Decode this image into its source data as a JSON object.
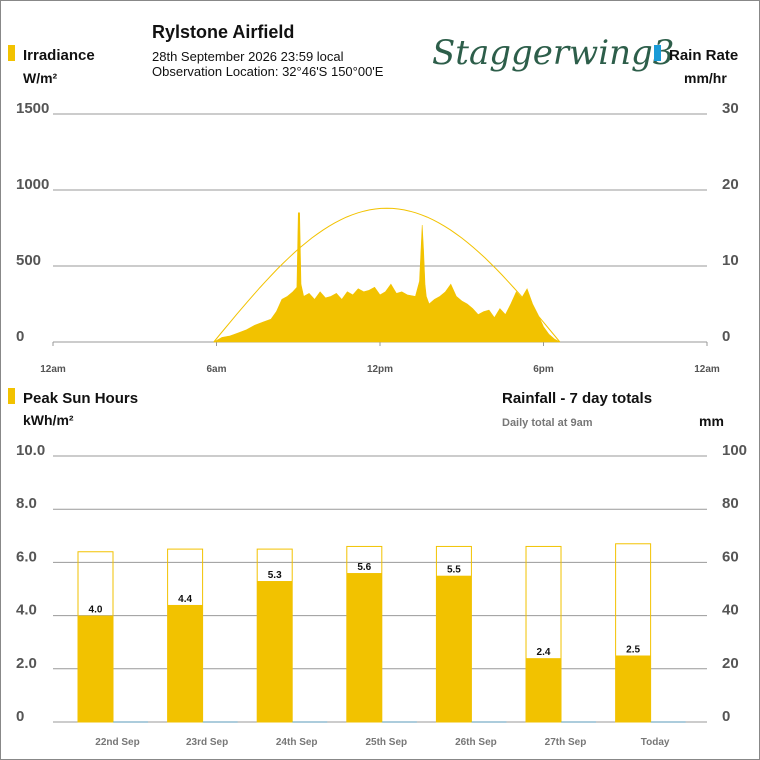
{
  "header": {
    "station_name": "Rylstone Airfield",
    "datetime": "28th September 2026  23:59 local",
    "location": "Observation Location:  32°46'S 150°00'E",
    "logo_text": "Staggerwing3"
  },
  "colors": {
    "irradiance": "#F2C200",
    "rain": "#1A9BD7",
    "grid": "#999999",
    "clear_sky_curve": "#F2C200",
    "axis_text": "#555555"
  },
  "chart_data": [
    {
      "type": "area",
      "legend_left": "Irradiance",
      "unit_left": "W/m²",
      "legend_right": "Rain Rate",
      "unit_right": "mm/hr",
      "ylim_left": [
        0,
        1500
      ],
      "ylim_right": [
        0,
        30
      ],
      "yticks_left": [
        "0",
        "500",
        "1000",
        "1500"
      ],
      "yticks_right": [
        "0",
        "10",
        "20",
        "30"
      ],
      "xlim_hours": [
        0,
        24
      ],
      "xticks": [
        {
          "h": 0,
          "label": "12am"
        },
        {
          "h": 6,
          "label": "6am"
        },
        {
          "h": 12,
          "label": "12pm"
        },
        {
          "h": 18,
          "label": "6pm"
        },
        {
          "h": 24,
          "label": "12am"
        }
      ],
      "clear_sky_curve": {
        "start_h": 5.9,
        "end_h": 18.6,
        "peak": 880
      },
      "irradiance_series": {
        "x_hours": [
          5.9,
          6.2,
          6.5,
          6.8,
          7.1,
          7.4,
          7.7,
          8.0,
          8.2,
          8.4,
          8.6,
          8.8,
          8.95,
          9.0,
          9.05,
          9.1,
          9.2,
          9.4,
          9.6,
          9.8,
          10.0,
          10.2,
          10.4,
          10.6,
          10.8,
          11.0,
          11.2,
          11.4,
          11.6,
          11.8,
          12.0,
          12.2,
          12.4,
          12.6,
          12.8,
          13.0,
          13.3,
          13.45,
          13.55,
          13.6,
          13.65,
          13.7,
          13.8,
          14.0,
          14.2,
          14.4,
          14.6,
          14.8,
          15.0,
          15.2,
          15.4,
          15.6,
          15.8,
          16.0,
          16.2,
          16.4,
          16.6,
          16.8,
          17.0,
          17.2,
          17.4,
          17.6,
          17.8,
          18.0,
          18.2,
          18.4,
          18.6
        ],
        "values": [
          0,
          30,
          40,
          60,
          80,
          110,
          130,
          150,
          200,
          280,
          300,
          330,
          360,
          850,
          850,
          380,
          300,
          320,
          280,
          330,
          290,
          300,
          320,
          280,
          330,
          310,
          350,
          330,
          340,
          360,
          310,
          330,
          380,
          320,
          330,
          310,
          300,
          400,
          770,
          600,
          380,
          300,
          250,
          280,
          300,
          330,
          380,
          300,
          270,
          250,
          220,
          180,
          200,
          210,
          160,
          220,
          180,
          250,
          330,
          290,
          350,
          250,
          180,
          100,
          50,
          20,
          0
        ]
      }
    },
    {
      "type": "bar",
      "legend_left": "Peak Sun Hours",
      "unit_left": "kWh/m²",
      "title_right": "Rainfall - 7 day totals",
      "subtitle_right": "Daily total at 9am",
      "unit_right": "mm",
      "ylim_left": [
        0,
        10
      ],
      "ylim_right": [
        0,
        100
      ],
      "yticks_left": [
        "0",
        "2.0",
        "4.0",
        "6.0",
        "8.0",
        "10.0"
      ],
      "yticks_right": [
        "0",
        "20",
        "40",
        "60",
        "80",
        "100"
      ],
      "categories": [
        "22nd Sep",
        "23rd Sep",
        "24th Sep",
        "25th Sep",
        "26th Sep",
        "27th Sep",
        "Today"
      ],
      "series": [
        {
          "values": [
            4.0,
            4.4,
            5.3,
            5.6,
            5.5,
            2.4,
            2.5
          ],
          "labels": [
            "4.0",
            "4.4",
            "5.3",
            "5.6",
            "5.5",
            "2.4",
            "2.5"
          ]
        },
        {
          "values": [
            6.4,
            6.5,
            6.5,
            6.6,
            6.6,
            6.6,
            6.7
          ]
        },
        {
          "values": [
            0,
            0,
            0,
            0,
            0,
            0,
            0
          ]
        }
      ]
    }
  ]
}
